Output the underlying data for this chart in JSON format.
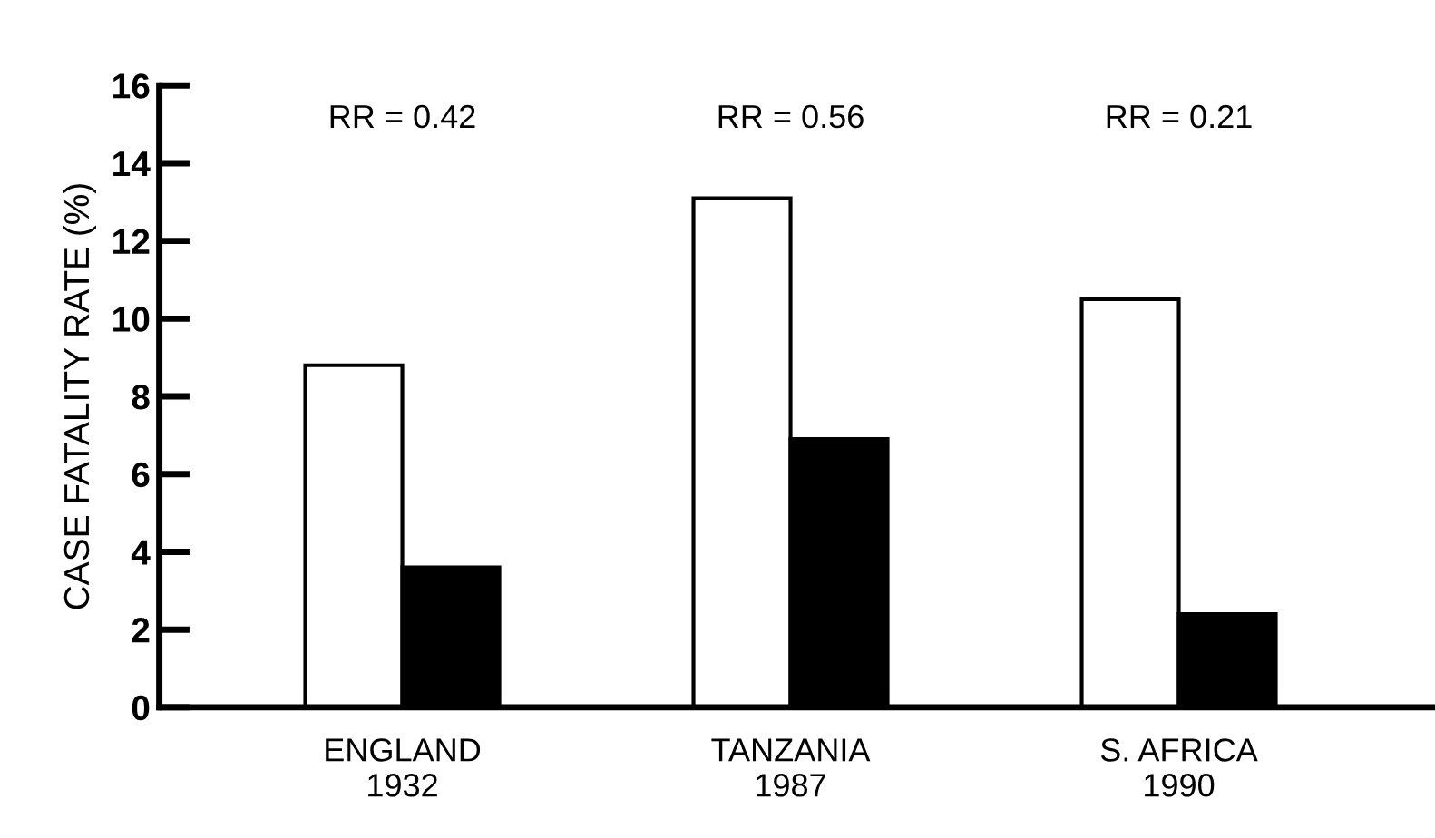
{
  "chart_data": {
    "type": "bar",
    "ylabel": "CASE FATALITY RATE (%)",
    "categories": [
      "ENGLAND\n1932",
      "TANZANIA\n1987",
      "S. AFRICA\n1990"
    ],
    "series": [
      {
        "color": "#ffffff",
        "values": [
          8.8,
          13.1,
          10.5
        ]
      },
      {
        "color": "#000000",
        "values": [
          3.6,
          6.9,
          2.4
        ]
      }
    ],
    "ylim": [
      0,
      16
    ],
    "yticks": [
      0,
      2,
      4,
      6,
      8,
      10,
      12,
      14,
      16
    ],
    "grid": false,
    "legend": false,
    "annotations": [
      "RR = 0.42",
      "RR = 0.56",
      "RR = 0.21"
    ]
  }
}
